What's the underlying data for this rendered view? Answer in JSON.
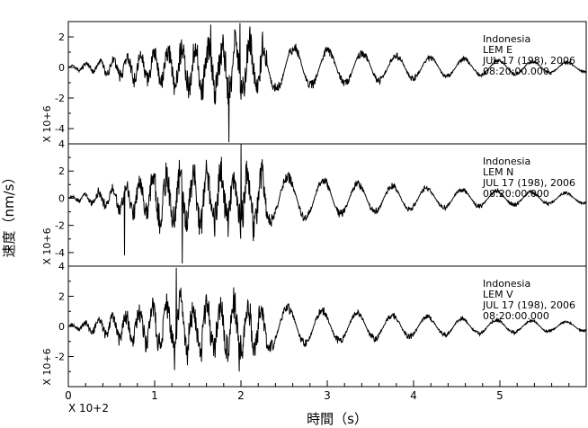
{
  "figure": {
    "ylabel": "速度（nm/s）",
    "xlabel": "時間（s）",
    "x_multiplier": "X 10+2",
    "x_ticks": [
      0,
      1,
      2,
      3,
      4,
      5
    ]
  },
  "chart_data": [
    {
      "type": "line",
      "multiplier": "X 10+6",
      "annotation": [
        "Indonesia",
        "LEM  E",
        "JUL 17 (198), 2006",
        "08:20:00.000"
      ],
      "xlim": [
        0,
        6
      ],
      "ylim": [
        -5,
        3
      ],
      "y_ticks": [
        -4,
        -2,
        0,
        2
      ],
      "grid": false,
      "seed": 11,
      "onset": 0.7,
      "peak": 1.8,
      "max_amp": 2.8,
      "spikes": [
        [
          1.86,
          -4.9
        ],
        [
          1.65,
          2.8
        ],
        [
          1.99,
          2.9
        ]
      ]
    },
    {
      "type": "line",
      "multiplier": "X 10+6",
      "annotation": [
        "Indonesia",
        "LEM  N",
        "JUL 17 (198), 2006",
        "08:20:00.000"
      ],
      "xlim": [
        0,
        6
      ],
      "ylim": [
        -5,
        4
      ],
      "y_ticks": [
        -4,
        -2,
        0,
        2,
        4
      ],
      "grid": false,
      "seed": 23,
      "onset": 0.6,
      "peak": 1.25,
      "max_amp": 3.2,
      "spikes": [
        [
          1.32,
          -4.8
        ],
        [
          2.0,
          4.1
        ],
        [
          0.65,
          -4.2
        ]
      ]
    },
    {
      "type": "line",
      "multiplier": "X 10+6",
      "annotation": [
        "Indonesia",
        "LEM  V",
        "JUL 17 (198), 2006",
        "08:20:00.000"
      ],
      "xlim": [
        0,
        6
      ],
      "ylim": [
        -4,
        4
      ],
      "y_ticks": [
        -2,
        0,
        2,
        4
      ],
      "grid": false,
      "seed": 37,
      "onset": 0.5,
      "peak": 1.3,
      "max_amp": 2.6,
      "spikes": [
        [
          1.25,
          3.9
        ],
        [
          1.23,
          -2.9
        ],
        [
          1.98,
          -3.0
        ]
      ]
    }
  ]
}
